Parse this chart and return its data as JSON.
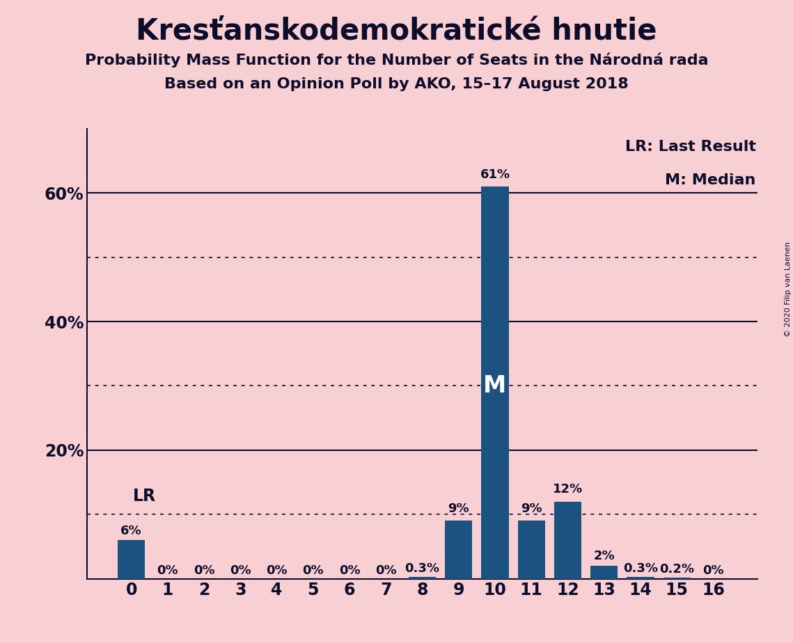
{
  "title": "Kresťanskodemokratické hnutie",
  "subtitle1": "Probability Mass Function for the Number of Seats in the Národná rada",
  "subtitle2": "Based on an Opinion Poll by AKO, 15–17 August 2018",
  "copyright": "© 2020 Filip van Laenen",
  "categories": [
    0,
    1,
    2,
    3,
    4,
    5,
    6,
    7,
    8,
    9,
    10,
    11,
    12,
    13,
    14,
    15,
    16
  ],
  "values": [
    6,
    0,
    0,
    0,
    0,
    0,
    0,
    0,
    0.3,
    9,
    61,
    9,
    12,
    2,
    0.3,
    0.2,
    0
  ],
  "bar_labels": [
    "6%",
    "0%",
    "0%",
    "0%",
    "0%",
    "0%",
    "0%",
    "0%",
    "0.3%",
    "9%",
    "61%",
    "9%",
    "12%",
    "2%",
    "0.3%",
    "0.2%",
    "0%"
  ],
  "bar_color": "#1b5280",
  "background_color": "#f8d0d4",
  "ylim": [
    0,
    70
  ],
  "solid_lines": [
    20,
    40,
    60
  ],
  "dotted_lines": [
    10,
    30,
    50
  ],
  "ytick_positions": [
    20,
    40,
    60
  ],
  "ytick_labels": [
    "20%",
    "40%",
    "60%"
  ],
  "lr_seat": 0,
  "median_seat": 10,
  "lr_label": "LR",
  "median_label": "M",
  "legend_lr": "LR: Last Result",
  "legend_m": "M: Median",
  "text_color": "#0d0d2b",
  "title_fontsize": 30,
  "subtitle_fontsize": 16,
  "bar_label_fontsize": 13,
  "axis_tick_fontsize": 17,
  "legend_fontsize": 16
}
